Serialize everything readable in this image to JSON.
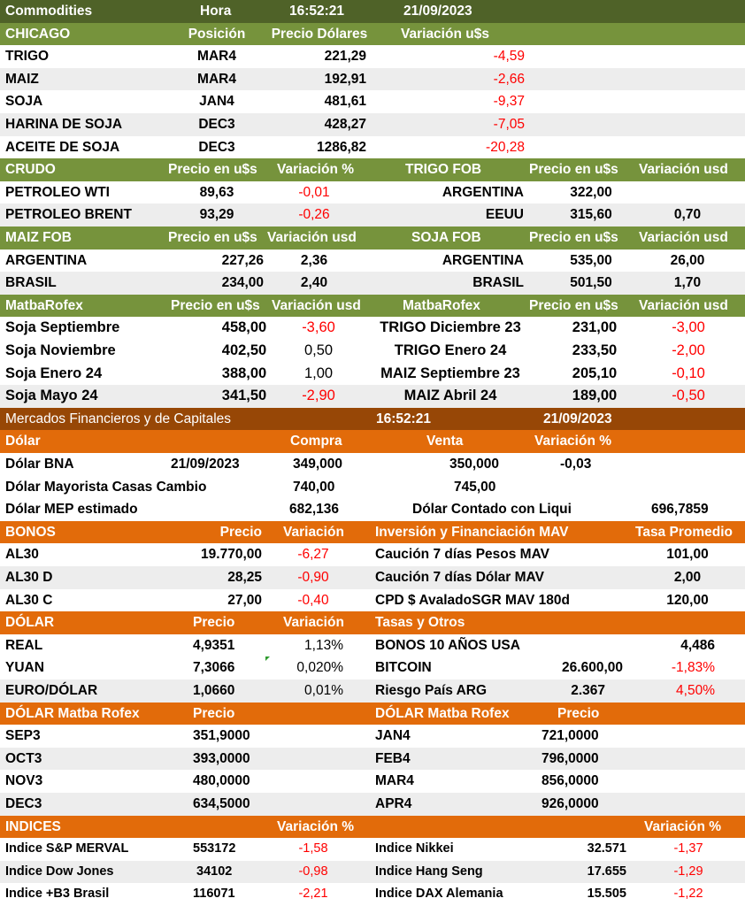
{
  "commodities": {
    "title": "Commodities",
    "hora_label": "Hora",
    "time": "16:52:21",
    "date": "21/09/2023"
  },
  "chicago": {
    "header": [
      "CHICAGO",
      "Posición",
      "Precio Dólares",
      "Variación u$s"
    ],
    "rows": [
      [
        "TRIGO",
        "MAR4",
        "221,29",
        "-4,59"
      ],
      [
        "MAIZ",
        "MAR4",
        "192,91",
        "-2,66"
      ],
      [
        "SOJA",
        "JAN4",
        "481,61",
        "-9,37"
      ],
      [
        "HARINA DE SOJA",
        "DEC3",
        "428,27",
        "-7,05"
      ],
      [
        "ACEITE DE SOJA",
        "DEC3",
        "1286,82",
        "-20,28"
      ]
    ]
  },
  "crudo": {
    "header": [
      "CRUDO",
      "Precio en u$s",
      "Variación %"
    ],
    "rows": [
      [
        "PETROLEO WTI",
        "89,63",
        "-0,01"
      ],
      [
        "PETROLEO BRENT",
        "93,29",
        "-0,26"
      ]
    ]
  },
  "trigo_fob": {
    "header": [
      "TRIGO FOB",
      "Precio en u$s",
      "Variación usd"
    ],
    "rows": [
      [
        "ARGENTINA",
        "322,00",
        ""
      ],
      [
        "EEUU",
        "315,60",
        "0,70"
      ]
    ]
  },
  "maiz_fob": {
    "header": [
      "MAIZ FOB",
      "Precio en u$s",
      "Variación usd"
    ],
    "rows": [
      [
        "ARGENTINA",
        "227,26",
        "2,36"
      ],
      [
        "BRASIL",
        "234,00",
        "2,40"
      ]
    ]
  },
  "soja_fob": {
    "header": [
      "SOJA FOB",
      "Precio en u$s",
      "Variación usd"
    ],
    "rows": [
      [
        "ARGENTINA",
        "535,00",
        "26,00"
      ],
      [
        "BRASIL",
        "501,50",
        "1,70"
      ]
    ]
  },
  "matba_left": {
    "header": [
      "MatbaRofex",
      "Precio en u$s",
      "Variación usd"
    ],
    "rows": [
      [
        "Soja Septiembre",
        "458,00",
        "-3,60"
      ],
      [
        "Soja Noviembre",
        "402,50",
        "0,50"
      ],
      [
        "Soja Enero 24",
        "388,00",
        "1,00"
      ],
      [
        "Soja Mayo 24",
        "341,50",
        "-2,90"
      ]
    ]
  },
  "matba_right": {
    "header": [
      "MatbaRofex",
      "Precio en u$s",
      "Variación usd"
    ],
    "rows": [
      [
        "TRIGO Diciembre 23",
        "231,00",
        "-3,00"
      ],
      [
        "TRIGO Enero 24",
        "233,50",
        "-2,00"
      ],
      [
        "MAIZ Septiembre 23",
        "205,10",
        "-0,10"
      ],
      [
        "MAIZ Abril 24",
        "189,00",
        "-0,50"
      ]
    ]
  },
  "financieros": {
    "title": "Mercados Financieros y de Capitales",
    "time": "16:52:21",
    "date": "21/09/2023"
  },
  "dolar": {
    "header": [
      "Dólar",
      "Compra",
      "Venta",
      "Variación %"
    ],
    "bna": [
      "Dólar BNA",
      "21/09/2023",
      "349,000",
      "350,000",
      "-0,03"
    ],
    "mayorista": [
      "Dólar Mayorista Casas Cambio",
      "740,00",
      "745,00"
    ],
    "mep": [
      "Dólar MEP estimado",
      "682,136",
      "Dólar Contado con Liqui",
      "696,7859"
    ]
  },
  "bonos": {
    "header": [
      "BONOS",
      "Precio",
      "Variación"
    ],
    "rows": [
      [
        "AL30",
        "19.770,00",
        "-6,27"
      ],
      [
        "AL30 D",
        "28,25",
        "-0,90"
      ],
      [
        "AL30 C",
        "27,00",
        "-0,40"
      ]
    ]
  },
  "mav": {
    "header": [
      "Inversión y Financiación MAV",
      "Tasa Promedio"
    ],
    "rows": [
      [
        "Caución 7 días Pesos MAV",
        "101,00"
      ],
      [
        "Caución 7 días Dólar MAV",
        "2,00"
      ],
      [
        "CPD $ AvaladoSGR  MAV 180d",
        "120,00"
      ]
    ]
  },
  "dolar_monedas": {
    "header": [
      "DÓLAR",
      "Precio",
      "Variación"
    ],
    "rows": [
      [
        "REAL",
        "4,9351",
        "1,13%"
      ],
      [
        "YUAN",
        "7,3066",
        "0,020%"
      ],
      [
        "EURO/DÓLAR",
        "1,0660",
        "0,01%"
      ]
    ]
  },
  "tasas": {
    "header": [
      "Tasas y Otros"
    ],
    "rows": [
      [
        "BONOS 10 AÑOS USA",
        "",
        "4,486"
      ],
      [
        "BITCOIN",
        "26.600,00",
        "-1,83%"
      ],
      [
        "Riesgo País ARG",
        "2.367",
        "4,50%"
      ]
    ]
  },
  "matba_dolar_left": {
    "header": [
      "DÓLAR Matba Rofex",
      "Precio"
    ],
    "rows": [
      [
        "SEP3",
        "351,9000"
      ],
      [
        "OCT3",
        "393,0000"
      ],
      [
        "NOV3",
        "480,0000"
      ],
      [
        "DEC3",
        "634,5000"
      ]
    ]
  },
  "matba_dolar_right": {
    "header": [
      "DÓLAR Matba Rofex",
      "Precio"
    ],
    "rows": [
      [
        "JAN4",
        "721,0000"
      ],
      [
        "FEB4",
        "796,0000"
      ],
      [
        "MAR4",
        "856,0000"
      ],
      [
        "APR4",
        "926,0000"
      ]
    ]
  },
  "indices": {
    "header": [
      "INDICES",
      "Variación %",
      "Variación %"
    ],
    "left": [
      [
        "Indice S&P MERVAL",
        "553172",
        "-1,58"
      ],
      [
        "Indice Dow Jones",
        "34102",
        "-0,98"
      ],
      [
        "Indice +B3 Brasil",
        "116071",
        "-2,21"
      ]
    ],
    "right": [
      [
        "Indice Nikkei",
        "32.571",
        "-1,37"
      ],
      [
        "Indice Hang Seng",
        "17.655",
        "-1,29"
      ],
      [
        "Indice DAX Alemania",
        "15.505",
        "-1,22"
      ]
    ]
  },
  "colors": {
    "green_header": "#76933c",
    "dark_green_header": "#4f6228",
    "brown_header": "#974706",
    "orange_header": "#e26b0a",
    "negative": "#ff0000",
    "zebra": "#ededed"
  }
}
